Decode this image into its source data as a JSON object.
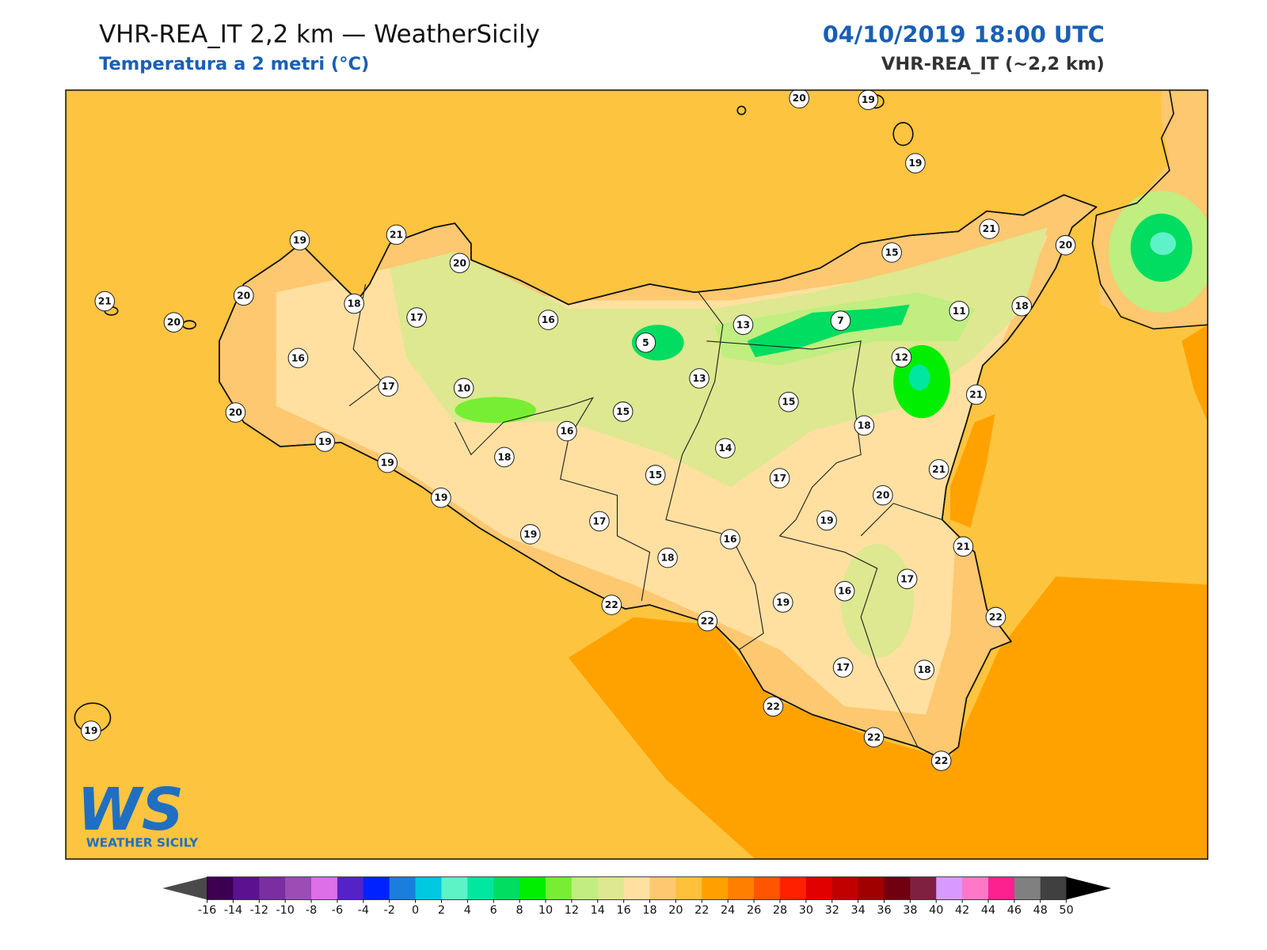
{
  "header": {
    "title": "VHR-REA_IT 2,2 km — WeatherSicily",
    "subtitle": "Temperatura a 2 metri (°C)",
    "datetime": "04/10/2019 18:00 UTC",
    "model": "VHR-REA_IT (~2,2 km)"
  },
  "stations": [
    19,
    21,
    20,
    20,
    21,
    20,
    18,
    17,
    16,
    5,
    13,
    7,
    11,
    15,
    21,
    20,
    18,
    12,
    20,
    19,
    19,
    16,
    17,
    10,
    13,
    15,
    15,
    21,
    20,
    19,
    16,
    18,
    14,
    19,
    18,
    15,
    17,
    21,
    20,
    19,
    17,
    19,
    19,
    16,
    21,
    18,
    17,
    16,
    19,
    22,
    22,
    22,
    17,
    18,
    22,
    22,
    22,
    19
  ],
  "colorbar": {
    "ticks": [
      -16,
      -14,
      -12,
      -10,
      -8,
      -6,
      -4,
      -2,
      0,
      2,
      4,
      6,
      8,
      10,
      12,
      14,
      16,
      18,
      20,
      22,
      24,
      26,
      28,
      30,
      32,
      34,
      36,
      38,
      40,
      42,
      44,
      46,
      48,
      50
    ],
    "colors": [
      "#3d0050",
      "#5c1190",
      "#7a2ea0",
      "#9c4db5",
      "#dd6fe8",
      "#5522c8",
      "#0022ff",
      "#1a7fdc",
      "#00c8e0",
      "#5ef2c8",
      "#00e8a0",
      "#00dd60",
      "#00ee00",
      "#77ee33",
      "#c0ee80",
      "#dde890",
      "#ffe0a0",
      "#fdc870",
      "#ffc03c",
      "#ffa000",
      "#ff7f00",
      "#ff5500",
      "#ff2000",
      "#e00000",
      "#c00000",
      "#a00000",
      "#700010",
      "#802040",
      "#d89aff",
      "#ff78c8",
      "#ff2090",
      "#808080",
      "#404040"
    ],
    "under_color": "#4a4a4a",
    "over_color": "#000000"
  },
  "logo": {
    "mark": "WS",
    "name": "WEATHER SICILY"
  }
}
